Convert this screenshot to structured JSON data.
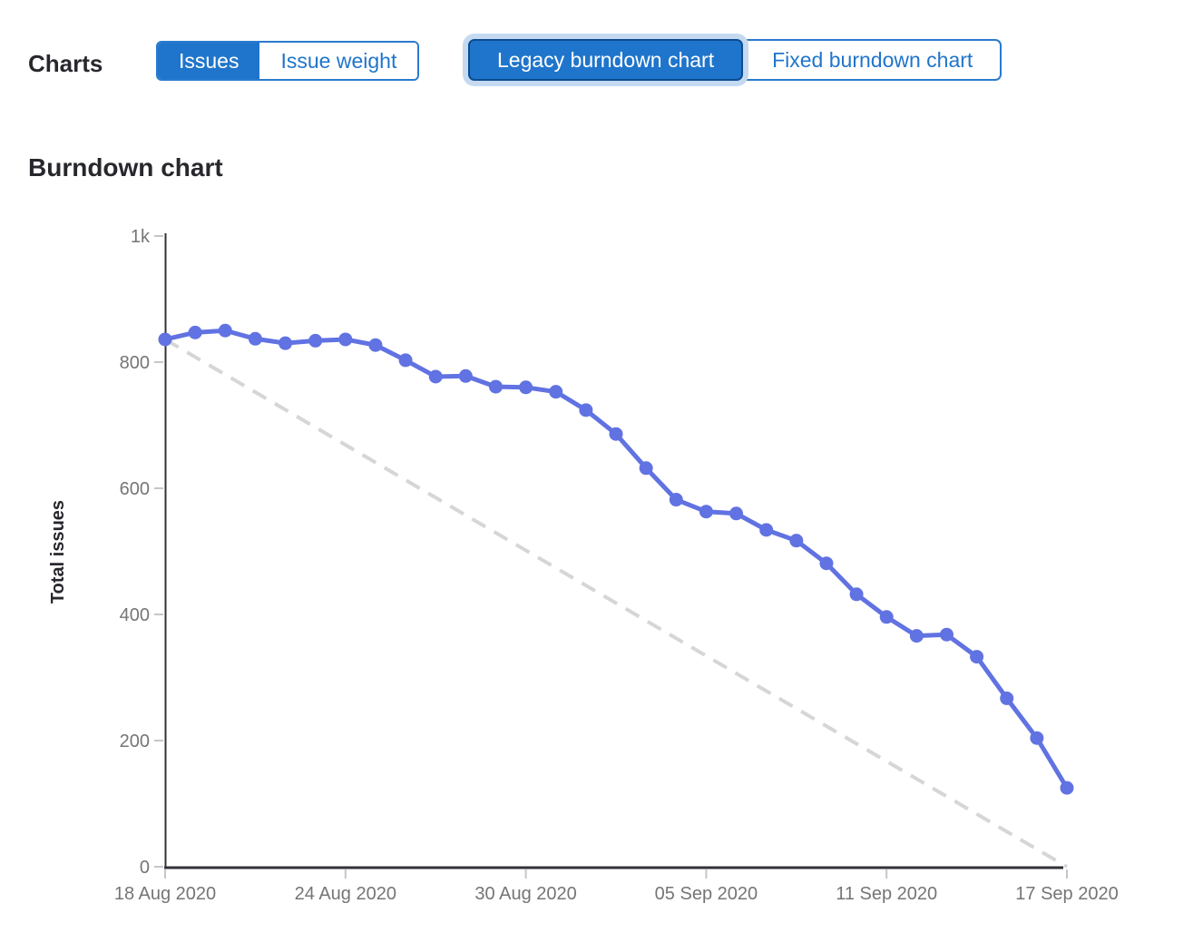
{
  "header": {
    "charts_label": "Charts",
    "metric_toggle": {
      "options": [
        {
          "label": "Issues",
          "selected": true
        },
        {
          "label": "Issue weight",
          "selected": false
        }
      ]
    },
    "chart_type_toggle": {
      "options": [
        {
          "label": "Legacy burndown chart",
          "selected": true,
          "focused": true
        },
        {
          "label": "Fixed burndown chart",
          "selected": false
        }
      ]
    }
  },
  "section_title": "Burndown chart",
  "colors": {
    "primary_blue": "#1f75cb",
    "selected_border": "#0b4c8f",
    "focus_ring": "#c5d9f1",
    "series_blue": "#6172e2",
    "guideline_gray": "#d6d6d6",
    "axis_dark": "#333238",
    "tick_gray": "#c6c6c8",
    "label_gray": "#757578",
    "heading_dark": "#28272d"
  },
  "chart_data": {
    "type": "line",
    "title": "Burndown chart",
    "xlabel": "",
    "ylabel": "Total issues",
    "ylim": [
      0,
      1000
    ],
    "grid": false,
    "legend": "none",
    "x": [
      "18 Aug 2020",
      "19 Aug 2020",
      "20 Aug 2020",
      "21 Aug 2020",
      "22 Aug 2020",
      "23 Aug 2020",
      "24 Aug 2020",
      "25 Aug 2020",
      "26 Aug 2020",
      "27 Aug 2020",
      "28 Aug 2020",
      "29 Aug 2020",
      "30 Aug 2020",
      "31 Aug 2020",
      "01 Sep 2020",
      "02 Sep 2020",
      "03 Sep 2020",
      "04 Sep 2020",
      "05 Sep 2020",
      "06 Sep 2020",
      "07 Sep 2020",
      "08 Sep 2020",
      "09 Sep 2020",
      "10 Sep 2020",
      "11 Sep 2020",
      "12 Sep 2020",
      "13 Sep 2020",
      "14 Sep 2020",
      "15 Sep 2020",
      "16 Sep 2020",
      "17 Sep 2020"
    ],
    "series": [
      {
        "id": "remaining-issues",
        "style": "solid-with-points",
        "color": "#6172e2",
        "values": [
          836,
          847,
          850,
          837,
          830,
          834,
          836,
          827,
          803,
          777,
          778,
          761,
          760,
          753,
          724,
          686,
          632,
          582,
          563,
          560,
          534,
          517,
          481,
          432,
          396,
          366,
          368,
          333,
          267,
          204,
          125
        ]
      },
      {
        "id": "guideline",
        "style": "dashed",
        "color": "#d6d6d6",
        "endpoints": [
          836,
          0
        ]
      }
    ],
    "y_ticks": {
      "values": [
        0,
        200,
        400,
        600,
        800,
        1000
      ],
      "labels": [
        "0",
        "200",
        "400",
        "600",
        "800",
        "1k"
      ]
    },
    "x_tick_indices": [
      0,
      6,
      12,
      18,
      24,
      30
    ],
    "x_tick_labels": [
      "18 Aug 2020",
      "24 Aug 2020",
      "30 Aug 2020",
      "05 Sep 2020",
      "11 Sep 2020",
      "17 Sep 2020"
    ]
  }
}
